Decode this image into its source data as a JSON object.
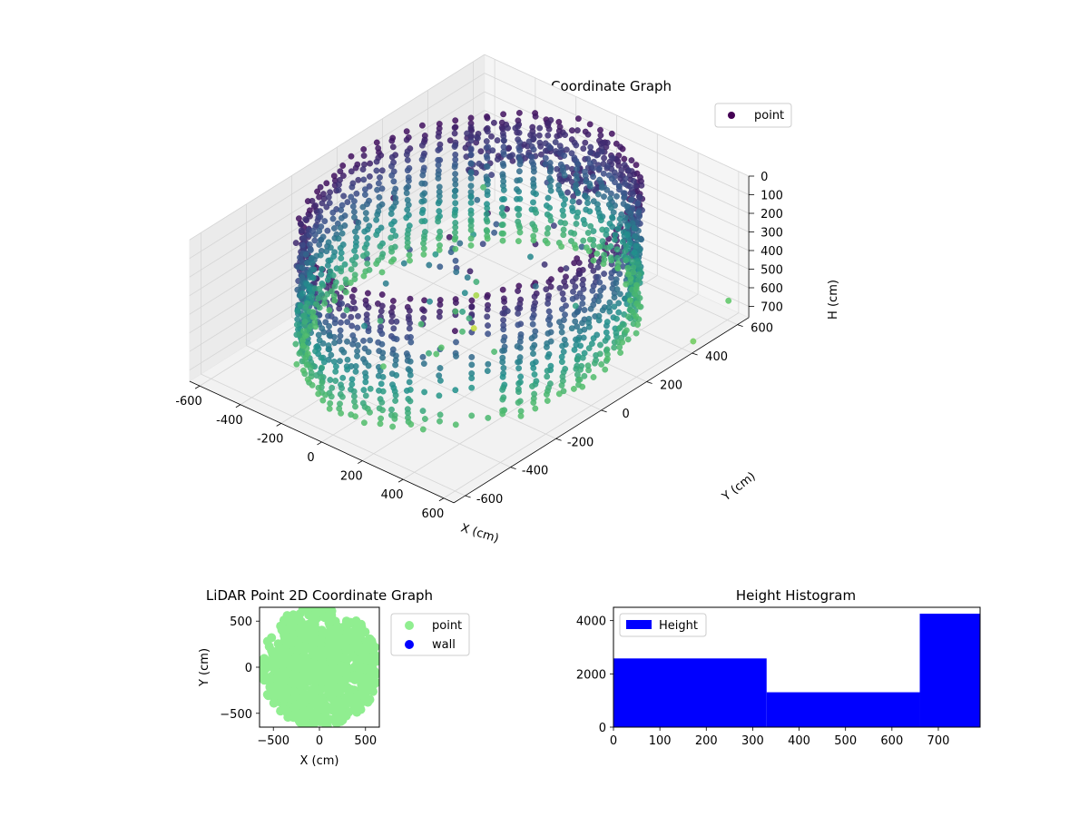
{
  "colors": {
    "background": "#ffffff",
    "viridis_dark": "#440154",
    "viridis_mid": "#3b528b",
    "viridis_teal": "#21918c",
    "viridis_green": "#5ec962",
    "scatter2d_point": "#90ee90",
    "scatter2d_wall": "#0000ff",
    "hist_bar": "#0000ff",
    "pane_fill": "#f2f2f2",
    "grid": "#d5d5d5"
  },
  "chart_data": [
    {
      "type": "scatter",
      "projection": "3d",
      "title": "LiDAR Point 3D Coordinate Graph",
      "xlabel": "X (cm)",
      "ylabel": "Y (cm)",
      "zlabel": "H (cm)",
      "xlim": [
        -650,
        650
      ],
      "ylim": [
        -650,
        650
      ],
      "zlim": [
        760,
        0
      ],
      "z_inverted": true,
      "x_ticks": [
        "-600",
        "-400",
        "-200",
        "0",
        "200",
        "400",
        "600"
      ],
      "y_ticks": [
        "-600",
        "-400",
        "-200",
        "0",
        "200",
        "400",
        "600"
      ],
      "z_ticks": [
        "0",
        "100",
        "200",
        "300",
        "400",
        "500",
        "600",
        "700"
      ],
      "colormap": "viridis",
      "legend": {
        "entries": [
          "point"
        ],
        "placement": "top-right"
      },
      "grid": true,
      "series": [
        {
          "name": "point",
          "description_of_structure": "cylindrical wall of points around origin, radius ~550 cm, heights 0-700 cm, plus a dense cluster near the top at the back and sparse outliers",
          "wall_radius": 550,
          "wall_height_range": [
            0,
            700
          ],
          "outliers": [
            {
              "x": 600,
              "y": -600,
              "h": -100
            },
            {
              "x": -600,
              "y": 600,
              "h": 650
            },
            {
              "x": -300,
              "y": 300,
              "h": 850
            },
            {
              "x": -200,
              "y": 200,
              "h": 900
            },
            {
              "x": 550,
              "y": 650,
              "h": 720
            },
            {
              "x": 600,
              "y": 450,
              "h": 760
            }
          ]
        }
      ]
    },
    {
      "type": "scatter",
      "title": "LiDAR Point 2D Coordinate Graph",
      "xlabel": "X (cm)",
      "ylabel": "Y (cm)",
      "xlim": [
        -650,
        650
      ],
      "ylim": [
        -650,
        650
      ],
      "x_ticks": [
        "−500",
        "0",
        "500"
      ],
      "y_ticks": [
        "−500",
        "0",
        "500"
      ],
      "legend": {
        "entries": [
          "point",
          "wall"
        ],
        "placement": "outside-right"
      },
      "series": [
        {
          "name": "point",
          "description_of_structure": "points fill most of the disc of radius ~650 cm with sparse gaps near top-left"
        },
        {
          "name": "wall",
          "points": []
        }
      ]
    },
    {
      "type": "bar",
      "title": "Height Histogram",
      "xlabel": "",
      "ylabel": "",
      "xlim": [
        0,
        790
      ],
      "ylim": [
        0,
        4500
      ],
      "x_ticks": [
        "0",
        "100",
        "200",
        "300",
        "400",
        "500",
        "600",
        "700"
      ],
      "y_ticks": [
        "0",
        "2000",
        "4000"
      ],
      "legend": {
        "entries": [
          "Height"
        ],
        "placement": "top-left"
      },
      "series": [
        {
          "name": "Height",
          "bins": [
            0,
            330,
            660,
            790
          ],
          "values": [
            2580,
            1310,
            4260
          ]
        }
      ]
    }
  ]
}
